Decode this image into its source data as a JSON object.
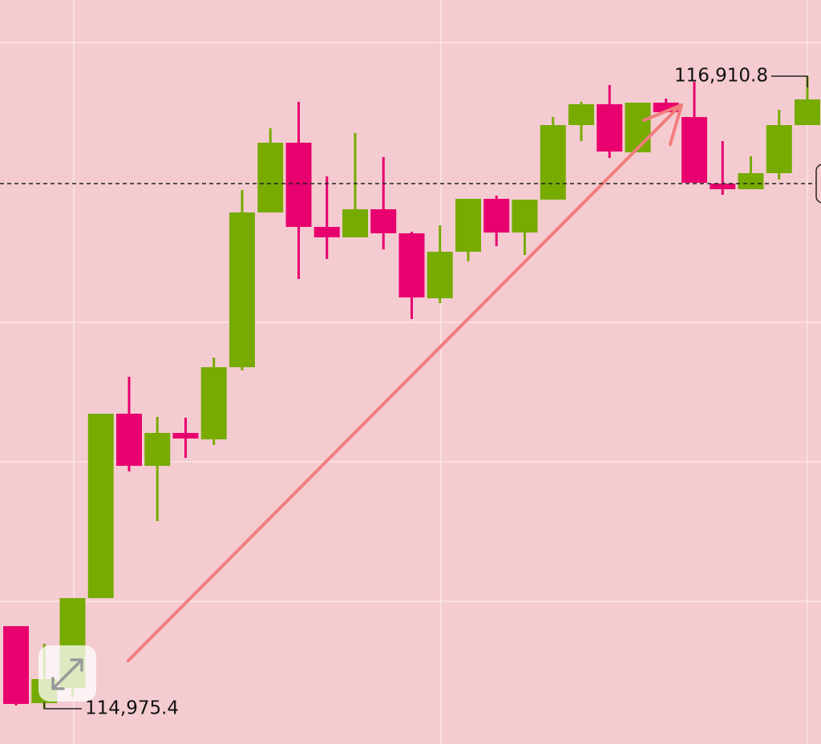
{
  "chart_data": {
    "type": "candlestick",
    "ylim": [
      114867.5,
      117143.8
    ],
    "up_color": "#77ab00",
    "down_color": "#e8006f",
    "open": [
      115228.0,
      114992.5,
      115039.1,
      115313.9,
      115878.1,
      115718.6,
      115819.2,
      115799.6,
      116020.3,
      116493.8,
      116707.2,
      116449.6,
      116417.7,
      116503.6,
      116430.0,
      116231.3,
      116373.6,
      116535.5,
      116432.4,
      116533.0,
      116761.1,
      116824.9,
      116677.7,
      116829.8,
      116785.7,
      116582.1,
      116564.9,
      116614.0,
      116761.1
    ],
    "high": [
      115228.0,
      115174.0,
      115313.9,
      115878.1,
      115990.9,
      115868.2,
      115865.8,
      116049.8,
      116562.4,
      116751.3,
      116832.3,
      116604.1,
      116736.6,
      116663.0,
      116434.9,
      116454.5,
      116535.5,
      116545.3,
      116533.0,
      116785.7,
      116832.3,
      116883.8,
      116829.8,
      116842.1,
      116893.6,
      116712.1,
      116665.5,
      116807.7,
      116910.8
    ],
    "low": [
      114985.2,
      114975.4,
      115009.7,
      115313.9,
      115701.4,
      115549.3,
      115743.1,
      115782.4,
      116010.5,
      116493.8,
      116290.2,
      116351.5,
      116417.7,
      116380.9,
      116167.5,
      116216.6,
      116344.1,
      116390.7,
      116363.7,
      116533.0,
      116712.1,
      116660.6,
      116677.7,
      116800.4,
      116584.5,
      116547.7,
      116564.9,
      116594.3,
      116761.1
    ],
    "close": [
      114990.1,
      115066.1,
      115313.9,
      115878.1,
      115718.6,
      115819.2,
      115802.0,
      116020.3,
      116493.8,
      116707.2,
      116449.6,
      116417.7,
      116503.6,
      116430.0,
      116233.7,
      116373.6,
      116535.5,
      116432.4,
      116533.0,
      116761.1,
      116824.9,
      116680.2,
      116829.8,
      116800.4,
      116584.5,
      116564.9,
      116614.0,
      116761.1,
      116839.6
    ],
    "price_line": 116582.1,
    "annotations": [
      {
        "text": "116,910.8",
        "value": 116910.8
      },
      {
        "text": "114,975.4",
        "value": 114975.4
      }
    ]
  }
}
